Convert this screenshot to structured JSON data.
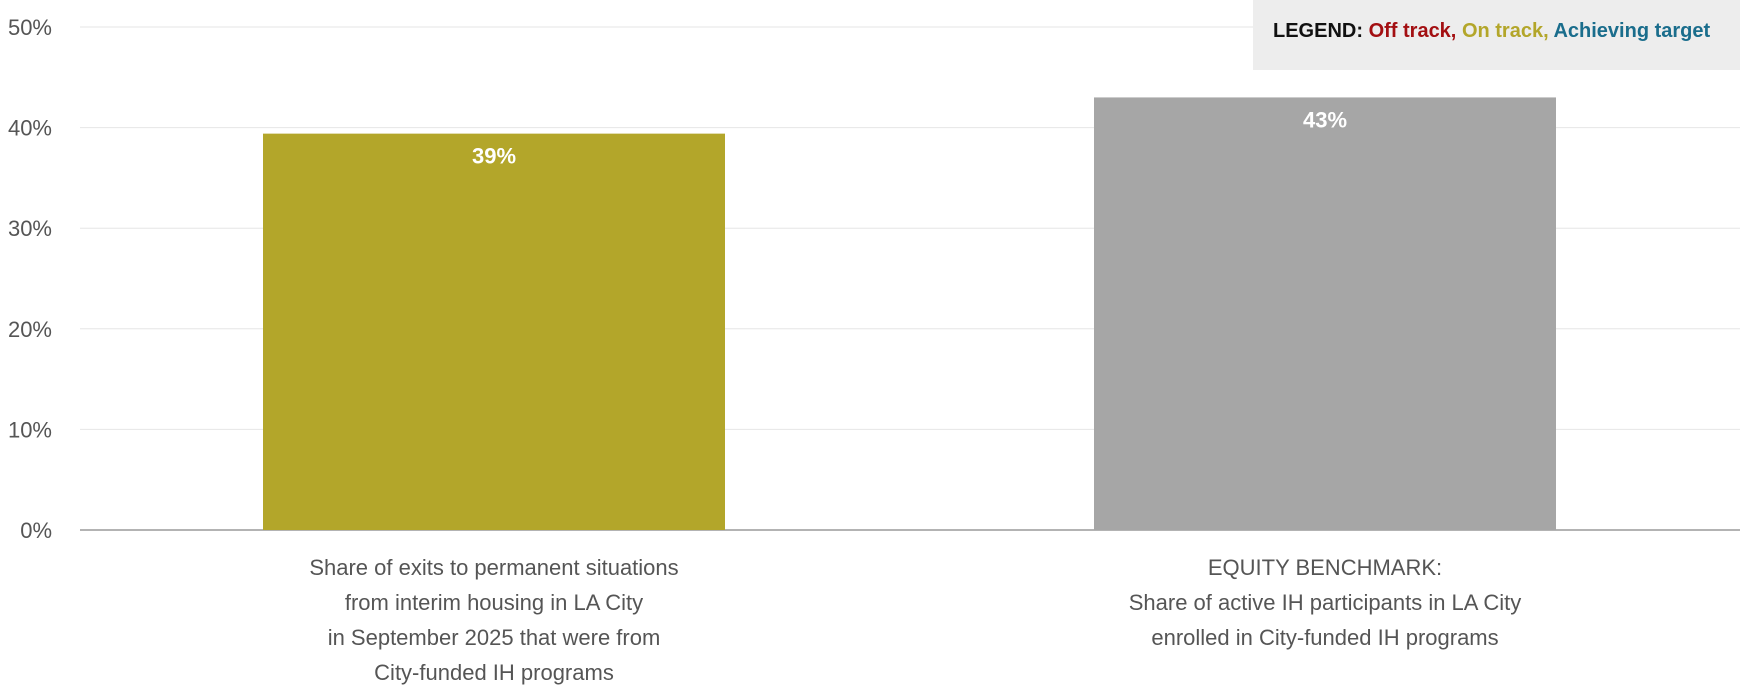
{
  "chart_data": {
    "type": "bar",
    "categories": [
      [
        "Share of exits to permanent situations",
        "from interim housing in LA City",
        "in September 2025 that were from",
        "City-funded IH programs"
      ],
      [
        "EQUITY BENCHMARK:",
        "Share of active IH participants in LA City",
        "enrolled in City-funded IH programs"
      ]
    ],
    "values": [
      39.4,
      43
    ],
    "data_labels": [
      "39%",
      "43%"
    ],
    "bar_colors": [
      "#b3a62a",
      "#a6a6a6"
    ],
    "ylim": [
      0,
      50
    ],
    "yticks": [
      0,
      10,
      20,
      30,
      40,
      50
    ],
    "ytick_labels": [
      "0%",
      "10%",
      "20%",
      "30%",
      "40%",
      "50%"
    ],
    "grid": true,
    "legend_placement": "top-right"
  },
  "legend": {
    "prefix": "LEGEND:",
    "items": [
      {
        "label": "Off track,",
        "color": "#a30f12"
      },
      {
        "label": "On track,",
        "color": "#b3a62a"
      },
      {
        "label": "Achieving target",
        "color": "#1a6d8c"
      }
    ]
  }
}
